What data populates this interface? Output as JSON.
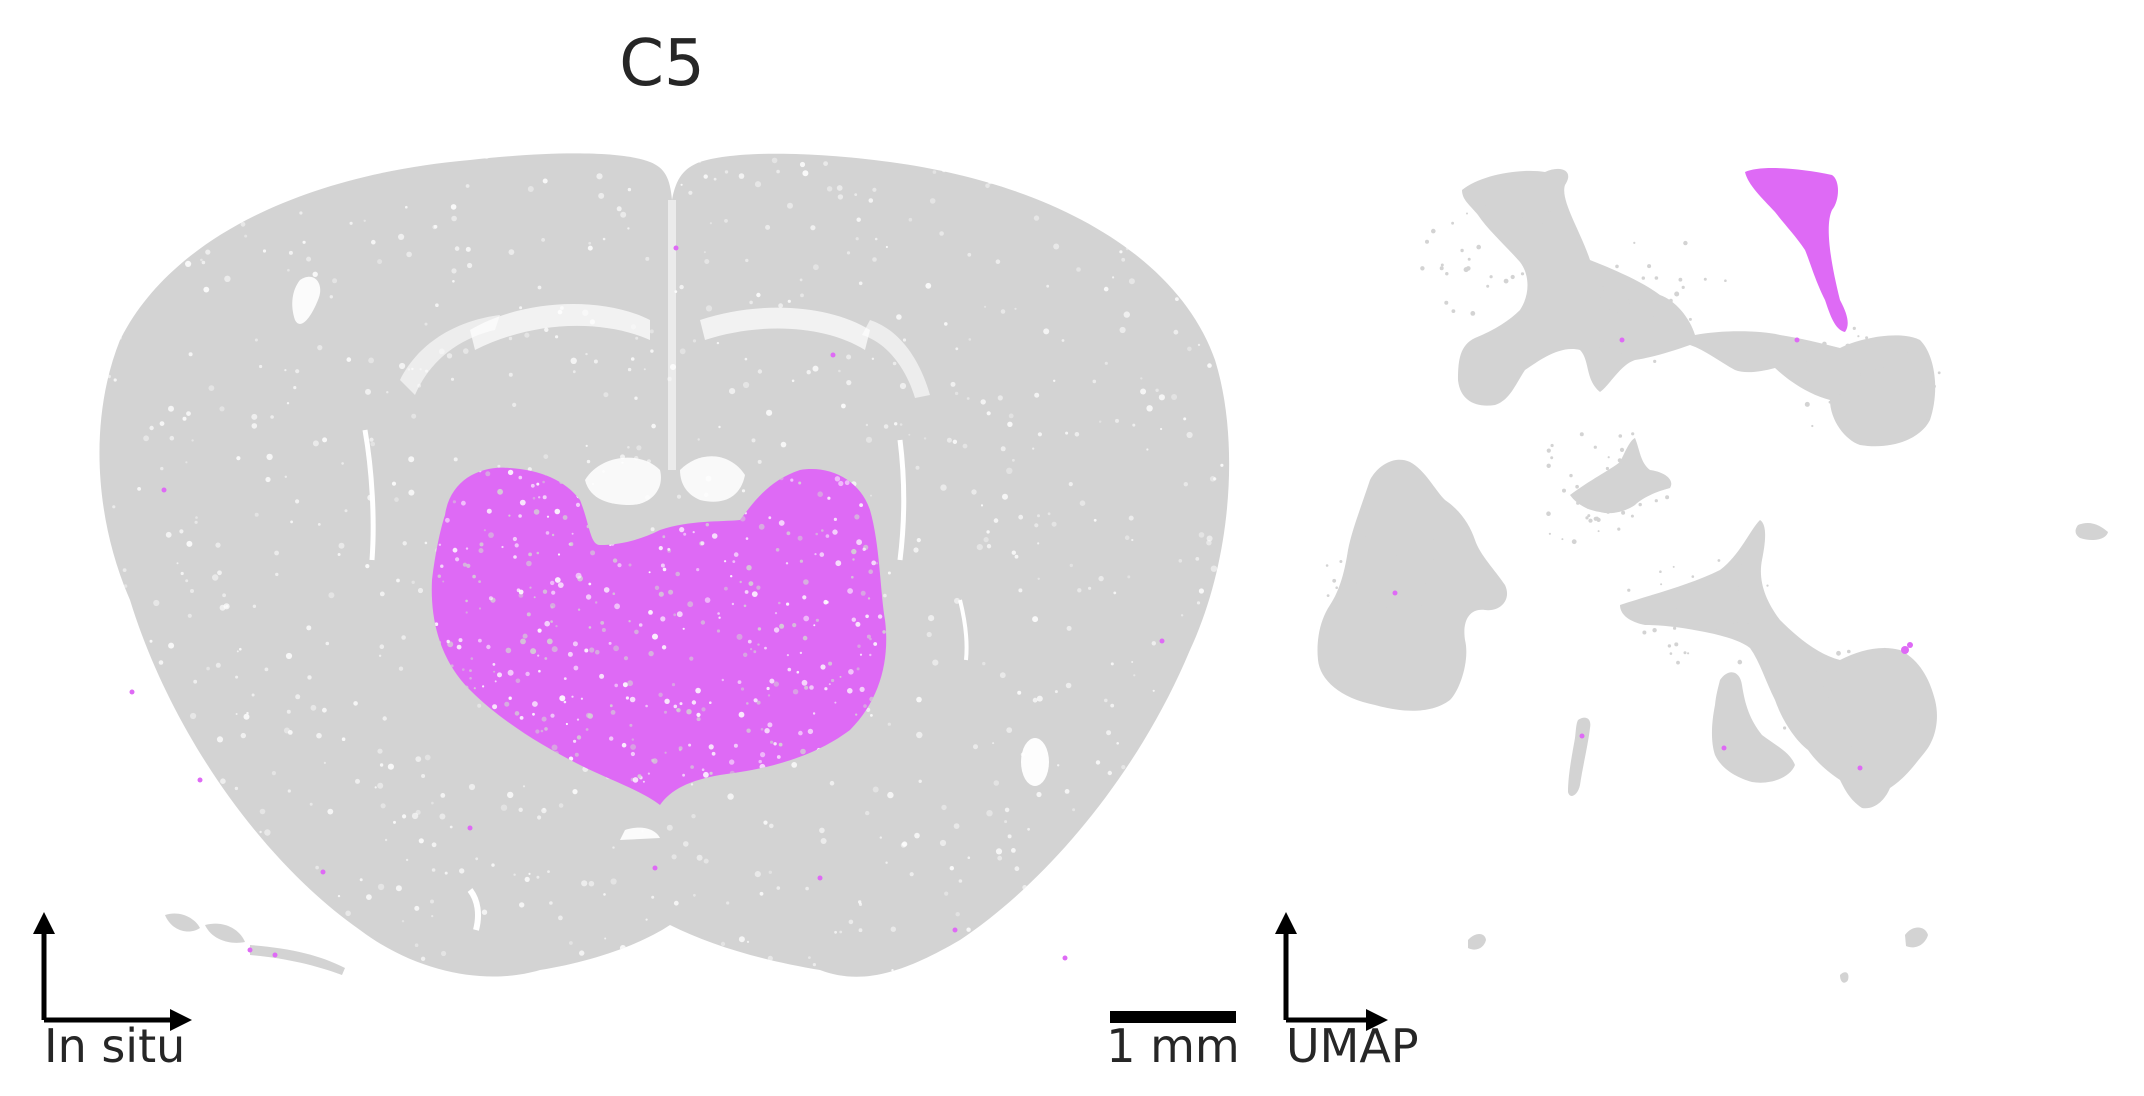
{
  "figure": {
    "title": "C5",
    "left_axis_label": "In situ",
    "right_axis_label": "UMAP",
    "scale_bar_label": "1 mm"
  },
  "colors": {
    "background_cells": "#d3d3d3",
    "highlight_cells": "#de6af5",
    "axes": "#000000",
    "text": "#262626"
  }
}
